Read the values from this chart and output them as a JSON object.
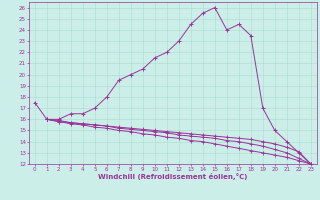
{
  "xlabel": "Windchill (Refroidissement éolien,°C)",
  "background_color": "#cceee8",
  "line_color": "#993399",
  "grid_color": "#aaddcc",
  "xlim": [
    -0.5,
    23.5
  ],
  "ylim": [
    12,
    26.5
  ],
  "xticks": [
    0,
    1,
    2,
    3,
    4,
    5,
    6,
    7,
    8,
    9,
    10,
    11,
    12,
    13,
    14,
    15,
    16,
    17,
    18,
    19,
    20,
    21,
    22,
    23
  ],
  "yticks": [
    12,
    13,
    14,
    15,
    16,
    17,
    18,
    19,
    20,
    21,
    22,
    23,
    24,
    25,
    26
  ],
  "line1_x": [
    0,
    1,
    2,
    3,
    4,
    5,
    6,
    7,
    8,
    9,
    10,
    11,
    12,
    13,
    14,
    15,
    16,
    17,
    18,
    19,
    20,
    21,
    22,
    23
  ],
  "line1_y": [
    17.5,
    16.0,
    16.0,
    16.5,
    16.5,
    17.0,
    18.0,
    19.5,
    20.0,
    20.5,
    21.5,
    22.0,
    23.0,
    24.5,
    25.5,
    26.0,
    24.0,
    24.5,
    23.5,
    17.0,
    15.0,
    14.0,
    13.0,
    12.0
  ],
  "line2_x": [
    1,
    2,
    3,
    4,
    5,
    6,
    7,
    8,
    9,
    10,
    11,
    12,
    13,
    14,
    15,
    16,
    17,
    18,
    19,
    20,
    21,
    22,
    23
  ],
  "line2_y": [
    16.0,
    15.8,
    15.7,
    15.6,
    15.5,
    15.4,
    15.3,
    15.2,
    15.1,
    15.0,
    14.9,
    14.8,
    14.7,
    14.6,
    14.5,
    14.4,
    14.3,
    14.2,
    14.0,
    13.8,
    13.5,
    13.1,
    12.0
  ],
  "line3_x": [
    1,
    2,
    3,
    4,
    5,
    6,
    7,
    8,
    9,
    10,
    11,
    12,
    13,
    14,
    15,
    16,
    17,
    18,
    19,
    20,
    21,
    22,
    23
  ],
  "line3_y": [
    16.0,
    15.9,
    15.7,
    15.6,
    15.5,
    15.4,
    15.2,
    15.1,
    15.0,
    14.9,
    14.8,
    14.6,
    14.5,
    14.4,
    14.3,
    14.1,
    14.0,
    13.8,
    13.6,
    13.3,
    13.0,
    12.5,
    12.0
  ],
  "line4_x": [
    1,
    2,
    3,
    4,
    5,
    6,
    7,
    8,
    9,
    10,
    11,
    12,
    13,
    14,
    15,
    16,
    17,
    18,
    19,
    20,
    21,
    22,
    23
  ],
  "line4_y": [
    16.0,
    15.8,
    15.6,
    15.5,
    15.3,
    15.2,
    15.0,
    14.9,
    14.7,
    14.6,
    14.4,
    14.3,
    14.1,
    14.0,
    13.8,
    13.6,
    13.4,
    13.2,
    13.0,
    12.8,
    12.6,
    12.3,
    12.0
  ],
  "tick_fontsize": 4.0,
  "xlabel_fontsize": 5.0
}
